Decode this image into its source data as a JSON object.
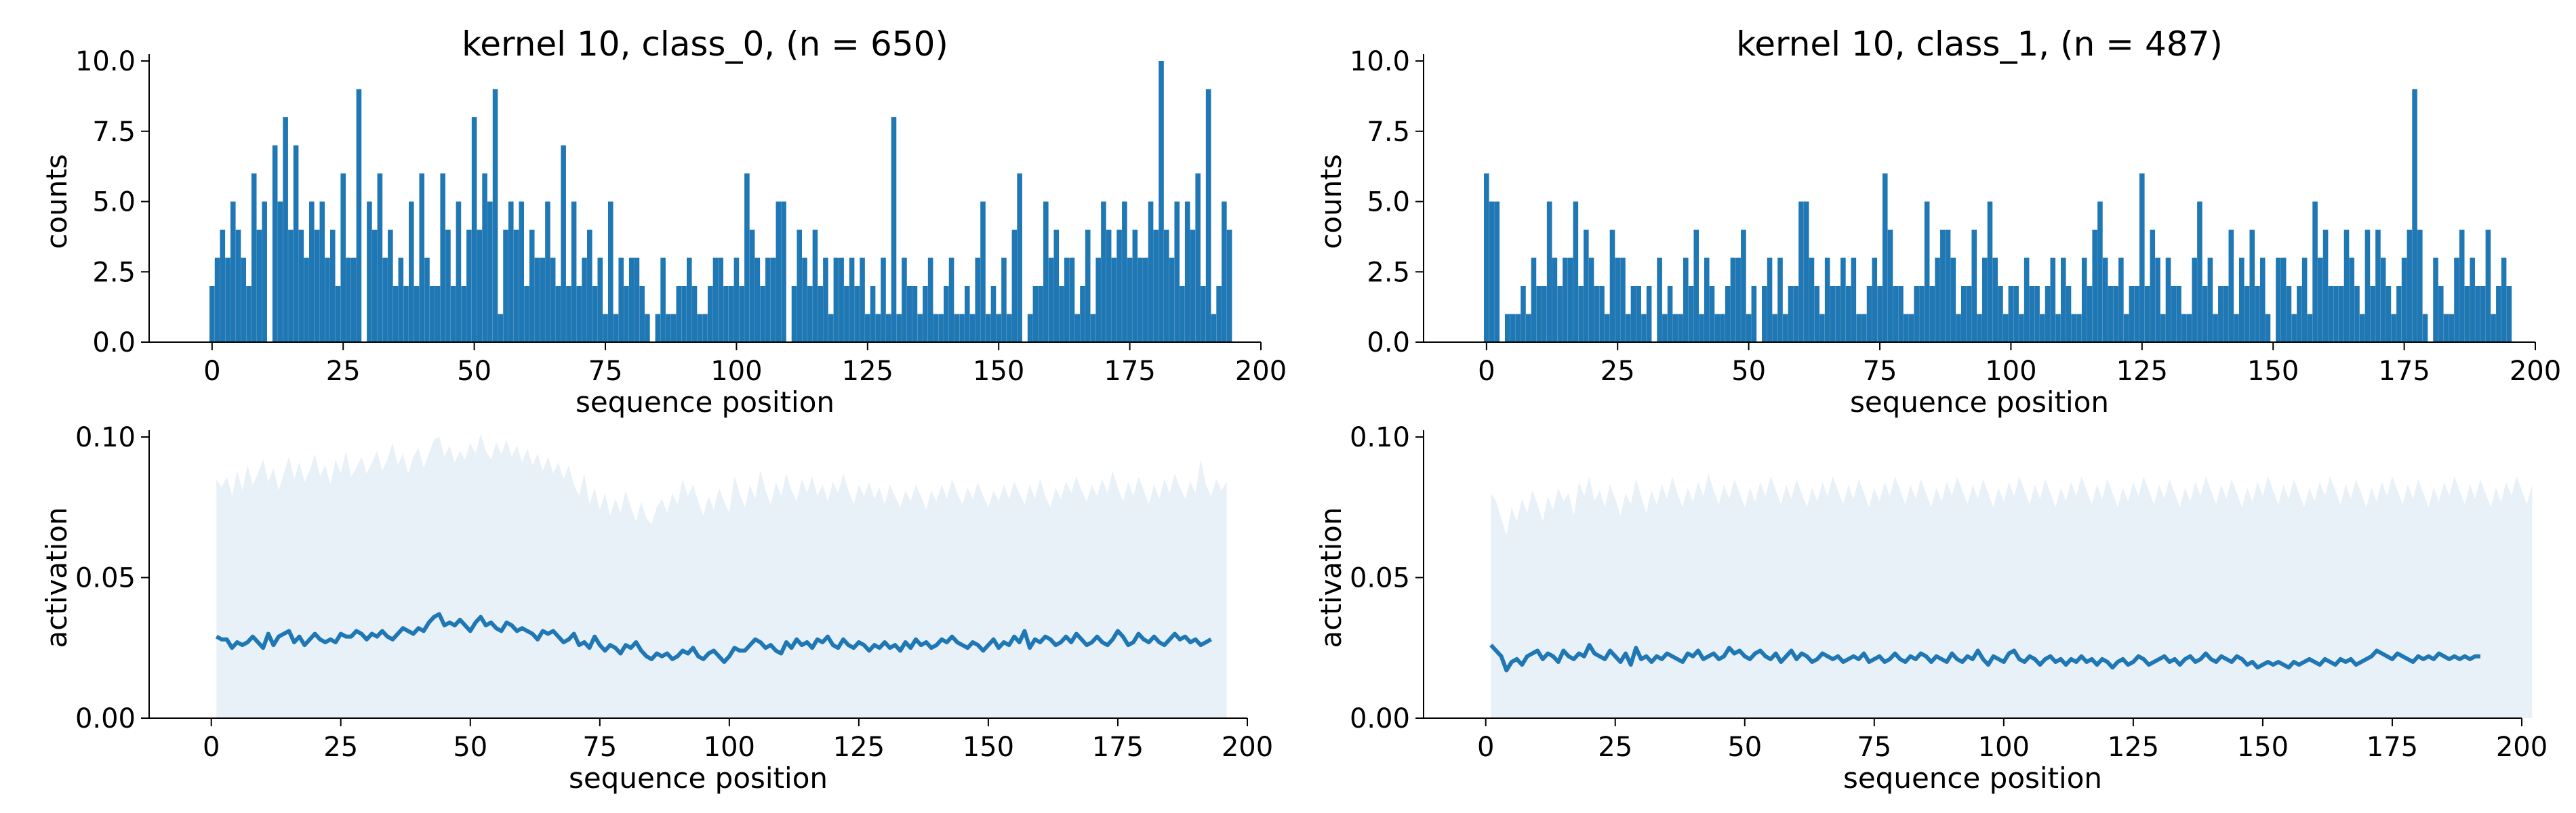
{
  "colors": {
    "bar": "#1f77b4",
    "line": "#1f77b4",
    "band": "#e8f0f8"
  },
  "chart_data": [
    {
      "type": "bar",
      "title": "kernel 10, class_0, (n = 650)",
      "xlabel": "sequence position",
      "ylabel": "counts",
      "xlim": [
        -12,
        200
      ],
      "ylim": [
        0,
        10
      ],
      "xticks": [
        0,
        25,
        50,
        75,
        100,
        125,
        150,
        175,
        200
      ],
      "yticks": [
        "0.0",
        "2.5",
        "5.0",
        "7.5",
        "10.0"
      ],
      "x_start": 0,
      "values": [
        2,
        3,
        4,
        3,
        5,
        4,
        3,
        2,
        6,
        4,
        5,
        0,
        7,
        5,
        8,
        4,
        7,
        4,
        3,
        5,
        4,
        5,
        3,
        4,
        2,
        6,
        3,
        3,
        9,
        0,
        5,
        4,
        6,
        3,
        4,
        2,
        3,
        2,
        5,
        2,
        6,
        3,
        2,
        2,
        6,
        4,
        2,
        5,
        2,
        4,
        8,
        4,
        6,
        5,
        9,
        1,
        4,
        5,
        4,
        5,
        2,
        4,
        3,
        3,
        5,
        3,
        2,
        7,
        2,
        5,
        2,
        3,
        4,
        2,
        3,
        1,
        5,
        1,
        3,
        2,
        3,
        3,
        2,
        1,
        0,
        1,
        3,
        1,
        1,
        2,
        2,
        3,
        2,
        1,
        1,
        2,
        3,
        3,
        2,
        2,
        3,
        2,
        6,
        4,
        3,
        2,
        3,
        3,
        5,
        5,
        0,
        2,
        4,
        3,
        2,
        4,
        2,
        3,
        1,
        3,
        3,
        2,
        3,
        2,
        3,
        1,
        2,
        1,
        3,
        1,
        8,
        1,
        3,
        2,
        2,
        1,
        2,
        3,
        1,
        1,
        2,
        3,
        1,
        1,
        2,
        1,
        3,
        5,
        1,
        2,
        1,
        3,
        1,
        4,
        6,
        0,
        1,
        2,
        2,
        5,
        3,
        4,
        2,
        3,
        3,
        1,
        2,
        4,
        1,
        3,
        5,
        4,
        3,
        4,
        5,
        3,
        4,
        3,
        3,
        5,
        4,
        10,
        4,
        3,
        5,
        2,
        5,
        4,
        6,
        2,
        9,
        1,
        2,
        5,
        4
      ],
      "y_estimated": true
    },
    {
      "type": "bar",
      "title": "kernel 10, class_1, (n = 487)",
      "xlabel": "sequence position",
      "ylabel": "counts",
      "xlim": [
        -12,
        200
      ],
      "ylim": [
        0,
        10
      ],
      "xticks": [
        0,
        25,
        50,
        75,
        100,
        125,
        150,
        175,
        200
      ],
      "yticks": [
        "0.0",
        "2.5",
        "5.0",
        "7.5",
        "10.0"
      ],
      "x_start": 0,
      "values": [
        6,
        5,
        5,
        0,
        1,
        1,
        1,
        2,
        1,
        3,
        2,
        2,
        5,
        3,
        2,
        3,
        3,
        5,
        2,
        4,
        3,
        2,
        2,
        1,
        4,
        3,
        3,
        1,
        2,
        2,
        1,
        2,
        0,
        3,
        1,
        2,
        1,
        1,
        3,
        2,
        4,
        1,
        3,
        2,
        1,
        1,
        2,
        3,
        3,
        4,
        1,
        2,
        0,
        2,
        3,
        1,
        3,
        1,
        2,
        2,
        5,
        5,
        3,
        2,
        1,
        3,
        2,
        2,
        3,
        2,
        3,
        1,
        1,
        2,
        3,
        2,
        6,
        4,
        2,
        2,
        1,
        1,
        2,
        2,
        5,
        2,
        3,
        4,
        4,
        3,
        1,
        2,
        2,
        4,
        1,
        3,
        5,
        3,
        2,
        1,
        2,
        2,
        1,
        3,
        2,
        2,
        1,
        2,
        3,
        1,
        3,
        2,
        1,
        1,
        3,
        2,
        4,
        5,
        3,
        2,
        2,
        3,
        1,
        2,
        2,
        6,
        2,
        4,
        3,
        1,
        3,
        2,
        2,
        1,
        1,
        3,
        5,
        2,
        3,
        1,
        2,
        2,
        4,
        1,
        3,
        2,
        4,
        2,
        3,
        1,
        0,
        3,
        3,
        2,
        1,
        2,
        3,
        1,
        5,
        3,
        4,
        2,
        2,
        2,
        4,
        3,
        2,
        1,
        4,
        2,
        4,
        3,
        2,
        1,
        2,
        3,
        4,
        9,
        4,
        1,
        0,
        3,
        2,
        1,
        1,
        3,
        4,
        2,
        3,
        2,
        2,
        4,
        1,
        2,
        3,
        2
      ]
    },
    {
      "type": "area",
      "xlabel": "sequence position",
      "ylabel": "activation",
      "xlim": [
        -12,
        200
      ],
      "ylim": [
        0,
        0.1
      ],
      "xticks": [
        0,
        25,
        50,
        75,
        100,
        125,
        150,
        175,
        200
      ],
      "yticks": [
        "0.00",
        "0.05",
        "0.10"
      ],
      "x_start": 1,
      "mean_line": [
        0.029,
        0.028,
        0.028,
        0.025,
        0.027,
        0.026,
        0.027,
        0.029,
        0.027,
        0.025,
        0.03,
        0.026,
        0.029,
        0.03,
        0.031,
        0.027,
        0.029,
        0.026,
        0.028,
        0.03,
        0.028,
        0.027,
        0.028,
        0.027,
        0.03,
        0.029,
        0.029,
        0.031,
        0.03,
        0.028,
        0.03,
        0.029,
        0.031,
        0.029,
        0.028,
        0.03,
        0.032,
        0.031,
        0.03,
        0.032,
        0.031,
        0.034,
        0.036,
        0.037,
        0.033,
        0.034,
        0.033,
        0.035,
        0.033,
        0.031,
        0.034,
        0.036,
        0.033,
        0.034,
        0.032,
        0.031,
        0.034,
        0.033,
        0.031,
        0.032,
        0.031,
        0.03,
        0.028,
        0.031,
        0.03,
        0.031,
        0.029,
        0.027,
        0.028,
        0.03,
        0.026,
        0.027,
        0.025,
        0.029,
        0.026,
        0.024,
        0.026,
        0.025,
        0.023,
        0.026,
        0.025,
        0.027,
        0.024,
        0.022,
        0.021,
        0.023,
        0.022,
        0.023,
        0.021,
        0.022,
        0.024,
        0.023,
        0.025,
        0.022,
        0.021,
        0.023,
        0.024,
        0.022,
        0.02,
        0.022,
        0.025,
        0.024,
        0.024,
        0.026,
        0.028,
        0.027,
        0.025,
        0.026,
        0.024,
        0.023,
        0.027,
        0.025,
        0.028,
        0.026,
        0.027,
        0.025,
        0.028,
        0.027,
        0.029,
        0.026,
        0.025,
        0.028,
        0.026,
        0.025,
        0.027,
        0.026,
        0.024,
        0.026,
        0.025,
        0.027,
        0.025,
        0.026,
        0.024,
        0.027,
        0.025,
        0.028,
        0.026,
        0.027,
        0.025,
        0.026,
        0.028,
        0.027,
        0.029,
        0.027,
        0.026,
        0.025,
        0.027,
        0.026,
        0.024,
        0.026,
        0.028,
        0.025,
        0.027,
        0.026,
        0.029,
        0.027,
        0.031,
        0.025,
        0.028,
        0.027,
        0.029,
        0.028,
        0.026,
        0.027,
        0.029,
        0.027,
        0.03,
        0.028,
        0.026,
        0.027,
        0.029,
        0.027,
        0.026,
        0.028,
        0.031,
        0.029,
        0.026,
        0.027,
        0.03,
        0.028,
        0.027,
        0.029,
        0.027,
        0.026,
        0.028,
        0.03,
        0.028,
        0.029,
        0.027,
        0.028,
        0.026,
        0.027,
        0.028
      ],
      "band_upper": [
        0.085,
        0.082,
        0.086,
        0.079,
        0.088,
        0.081,
        0.09,
        0.083,
        0.087,
        0.092,
        0.084,
        0.089,
        0.081,
        0.087,
        0.093,
        0.085,
        0.091,
        0.084,
        0.088,
        0.094,
        0.086,
        0.09,
        0.083,
        0.092,
        0.087,
        0.095,
        0.086,
        0.089,
        0.093,
        0.087,
        0.091,
        0.095,
        0.088,
        0.092,
        0.098,
        0.09,
        0.094,
        0.087,
        0.093,
        0.096,
        0.089,
        0.094,
        0.099,
        0.1,
        0.093,
        0.097,
        0.091,
        0.095,
        0.092,
        0.098,
        0.094,
        0.101,
        0.095,
        0.092,
        0.098,
        0.094,
        0.099,
        0.093,
        0.097,
        0.091,
        0.096,
        0.09,
        0.094,
        0.088,
        0.093,
        0.087,
        0.091,
        0.085,
        0.09,
        0.083,
        0.079,
        0.087,
        0.076,
        0.082,
        0.074,
        0.08,
        0.072,
        0.078,
        0.073,
        0.081,
        0.075,
        0.07,
        0.077,
        0.071,
        0.069,
        0.075,
        0.078,
        0.073,
        0.08,
        0.076,
        0.085,
        0.079,
        0.083,
        0.077,
        0.072,
        0.079,
        0.074,
        0.082,
        0.077,
        0.073,
        0.086,
        0.08,
        0.075,
        0.083,
        0.078,
        0.088,
        0.081,
        0.076,
        0.084,
        0.079,
        0.087,
        0.081,
        0.077,
        0.085,
        0.08,
        0.086,
        0.079,
        0.083,
        0.077,
        0.084,
        0.08,
        0.087,
        0.081,
        0.076,
        0.083,
        0.079,
        0.084,
        0.078,
        0.082,
        0.076,
        0.083,
        0.079,
        0.075,
        0.081,
        0.077,
        0.083,
        0.079,
        0.074,
        0.081,
        0.077,
        0.083,
        0.078,
        0.085,
        0.08,
        0.076,
        0.082,
        0.078,
        0.084,
        0.079,
        0.075,
        0.081,
        0.077,
        0.083,
        0.078,
        0.084,
        0.08,
        0.076,
        0.083,
        0.078,
        0.085,
        0.079,
        0.075,
        0.082,
        0.078,
        0.084,
        0.08,
        0.086,
        0.081,
        0.077,
        0.083,
        0.079,
        0.085,
        0.08,
        0.088,
        0.082,
        0.077,
        0.084,
        0.079,
        0.086,
        0.081,
        0.076,
        0.083,
        0.078,
        0.085,
        0.08,
        0.087,
        0.082,
        0.078,
        0.084,
        0.08,
        0.092,
        0.083,
        0.079,
        0.085,
        0.081,
        0.084
      ]
    },
    {
      "type": "area",
      "xlabel": "sequence position",
      "ylabel": "activation",
      "xlim": [
        -12,
        200
      ],
      "ylim": [
        0,
        0.1
      ],
      "xticks": [
        0,
        25,
        50,
        75,
        100,
        125,
        150,
        175,
        200
      ],
      "yticks": [
        "0.00",
        "0.05",
        "0.10"
      ],
      "x_start": 1,
      "mean_line": [
        0.026,
        0.024,
        0.022,
        0.017,
        0.02,
        0.021,
        0.019,
        0.022,
        0.023,
        0.024,
        0.021,
        0.023,
        0.022,
        0.02,
        0.024,
        0.022,
        0.021,
        0.023,
        0.022,
        0.026,
        0.023,
        0.022,
        0.021,
        0.024,
        0.022,
        0.02,
        0.023,
        0.019,
        0.025,
        0.021,
        0.022,
        0.02,
        0.022,
        0.021,
        0.023,
        0.022,
        0.021,
        0.02,
        0.023,
        0.022,
        0.024,
        0.021,
        0.022,
        0.023,
        0.021,
        0.022,
        0.025,
        0.023,
        0.024,
        0.022,
        0.021,
        0.023,
        0.024,
        0.022,
        0.021,
        0.023,
        0.02,
        0.022,
        0.024,
        0.021,
        0.023,
        0.022,
        0.02,
        0.021,
        0.023,
        0.022,
        0.021,
        0.022,
        0.02,
        0.021,
        0.022,
        0.021,
        0.023,
        0.02,
        0.021,
        0.022,
        0.02,
        0.021,
        0.023,
        0.021,
        0.02,
        0.022,
        0.021,
        0.023,
        0.022,
        0.02,
        0.022,
        0.021,
        0.02,
        0.023,
        0.021,
        0.02,
        0.022,
        0.021,
        0.024,
        0.021,
        0.019,
        0.022,
        0.021,
        0.02,
        0.023,
        0.024,
        0.021,
        0.02,
        0.022,
        0.021,
        0.019,
        0.021,
        0.022,
        0.02,
        0.021,
        0.019,
        0.021,
        0.02,
        0.022,
        0.02,
        0.021,
        0.019,
        0.021,
        0.02,
        0.018,
        0.02,
        0.021,
        0.019,
        0.02,
        0.022,
        0.021,
        0.019,
        0.02,
        0.021,
        0.022,
        0.02,
        0.021,
        0.019,
        0.021,
        0.022,
        0.02,
        0.021,
        0.023,
        0.021,
        0.02,
        0.022,
        0.021,
        0.02,
        0.022,
        0.021,
        0.019,
        0.02,
        0.018,
        0.019,
        0.02,
        0.019,
        0.02,
        0.019,
        0.018,
        0.02,
        0.019,
        0.02,
        0.021,
        0.02,
        0.019,
        0.021,
        0.02,
        0.019,
        0.021,
        0.02,
        0.021,
        0.019,
        0.02,
        0.021,
        0.022,
        0.024,
        0.023,
        0.022,
        0.021,
        0.023,
        0.022,
        0.021,
        0.02,
        0.022,
        0.021,
        0.022,
        0.021,
        0.023,
        0.022,
        0.021,
        0.022,
        0.021,
        0.022,
        0.021,
        0.022,
        0.022
      ],
      "band_upper": [
        0.08,
        0.077,
        0.071,
        0.065,
        0.075,
        0.07,
        0.078,
        0.073,
        0.081,
        0.076,
        0.07,
        0.079,
        0.074,
        0.082,
        0.077,
        0.08,
        0.072,
        0.084,
        0.079,
        0.086,
        0.077,
        0.081,
        0.075,
        0.083,
        0.078,
        0.072,
        0.08,
        0.076,
        0.085,
        0.079,
        0.073,
        0.081,
        0.076,
        0.083,
        0.078,
        0.086,
        0.08,
        0.075,
        0.082,
        0.077,
        0.084,
        0.079,
        0.087,
        0.081,
        0.076,
        0.083,
        0.078,
        0.085,
        0.08,
        0.075,
        0.082,
        0.077,
        0.084,
        0.079,
        0.086,
        0.081,
        0.076,
        0.083,
        0.078,
        0.085,
        0.08,
        0.075,
        0.082,
        0.077,
        0.084,
        0.079,
        0.086,
        0.081,
        0.076,
        0.083,
        0.078,
        0.085,
        0.08,
        0.075,
        0.082,
        0.077,
        0.084,
        0.079,
        0.086,
        0.081,
        0.076,
        0.083,
        0.078,
        0.085,
        0.08,
        0.075,
        0.082,
        0.077,
        0.084,
        0.079,
        0.086,
        0.081,
        0.076,
        0.083,
        0.078,
        0.085,
        0.08,
        0.075,
        0.082,
        0.077,
        0.084,
        0.079,
        0.086,
        0.081,
        0.076,
        0.083,
        0.078,
        0.085,
        0.08,
        0.075,
        0.082,
        0.077,
        0.084,
        0.079,
        0.086,
        0.081,
        0.076,
        0.083,
        0.078,
        0.085,
        0.08,
        0.075,
        0.082,
        0.077,
        0.084,
        0.079,
        0.086,
        0.081,
        0.076,
        0.083,
        0.078,
        0.085,
        0.08,
        0.075,
        0.082,
        0.077,
        0.084,
        0.079,
        0.086,
        0.081,
        0.076,
        0.083,
        0.078,
        0.085,
        0.08,
        0.075,
        0.082,
        0.077,
        0.084,
        0.079,
        0.086,
        0.081,
        0.076,
        0.083,
        0.078,
        0.085,
        0.08,
        0.075,
        0.082,
        0.077,
        0.084,
        0.079,
        0.086,
        0.081,
        0.076,
        0.083,
        0.078,
        0.085,
        0.08,
        0.075,
        0.082,
        0.077,
        0.084,
        0.079,
        0.086,
        0.081,
        0.076,
        0.083,
        0.078,
        0.085,
        0.08,
        0.075,
        0.082,
        0.077,
        0.084,
        0.079,
        0.086,
        0.081,
        0.076,
        0.083,
        0.078,
        0.085,
        0.08,
        0.075,
        0.082,
        0.077,
        0.084,
        0.079,
        0.086,
        0.081,
        0.076,
        0.083
      ]
    }
  ]
}
